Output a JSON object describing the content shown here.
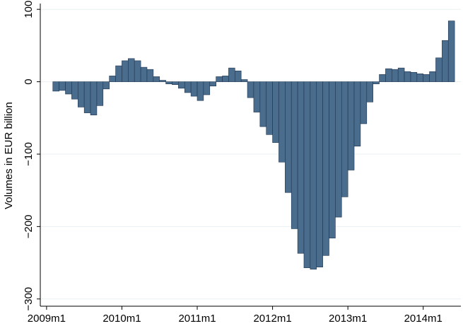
{
  "chart_data": {
    "type": "bar",
    "ylabel": "Volumes in EUR billion",
    "x": [
      "2009m2",
      "2009m3",
      "2009m4",
      "2009m5",
      "2009m6",
      "2009m7",
      "2009m8",
      "2009m9",
      "2009m10",
      "2009m11",
      "2009m12",
      "2010m1",
      "2010m2",
      "2010m3",
      "2010m4",
      "2010m5",
      "2010m6",
      "2010m7",
      "2010m8",
      "2010m9",
      "2010m10",
      "2010m11",
      "2010m12",
      "2011m1",
      "2011m2",
      "2011m3",
      "2011m4",
      "2011m5",
      "2011m6",
      "2011m7",
      "2011m8",
      "2011m9",
      "2011m10",
      "2011m11",
      "2011m12",
      "2012m1",
      "2012m2",
      "2012m3",
      "2012m4",
      "2012m5",
      "2012m6",
      "2012m7",
      "2012m8",
      "2012m9",
      "2012m10",
      "2012m11",
      "2012m12",
      "2013m1",
      "2013m2",
      "2013m3",
      "2013m4",
      "2013m5",
      "2013m6",
      "2013m7",
      "2013m8",
      "2013m9",
      "2013m10",
      "2013m11",
      "2013m12",
      "2014m1",
      "2014m2",
      "2014m3",
      "2014m4",
      "2014m5"
    ],
    "values": [
      -13,
      -12,
      -17,
      -24,
      -35,
      -43,
      -46,
      -33,
      -10,
      8,
      22,
      29,
      32,
      29,
      20,
      17,
      7,
      2,
      -3,
      -4,
      -9,
      -15,
      -20,
      -26,
      -18,
      -6,
      7,
      8,
      19,
      15,
      3,
      -22,
      -42,
      -62,
      -73,
      -84,
      -111,
      -153,
      -203,
      -237,
      -257,
      -259,
      -256,
      -240,
      -216,
      -187,
      -159,
      -122,
      -89,
      -58,
      -28,
      -3,
      10,
      18,
      17,
      19,
      14,
      13,
      11,
      10,
      14,
      33,
      57,
      84
    ],
    "color": "#4a6d8e",
    "edgecolor": "#1f3550",
    "xlim": [
      "2008m12",
      "2014m7"
    ],
    "xticks": [
      "2009m1",
      "2010m1",
      "2011m1",
      "2012m1",
      "2013m1",
      "2014m1"
    ],
    "ylim": [
      -310,
      108
    ],
    "yticks": [
      {
        "value": -300,
        "label": "−300"
      },
      {
        "value": -200,
        "label": "−200"
      },
      {
        "value": -100,
        "label": "−100"
      },
      0,
      100
    ],
    "grid": true
  }
}
